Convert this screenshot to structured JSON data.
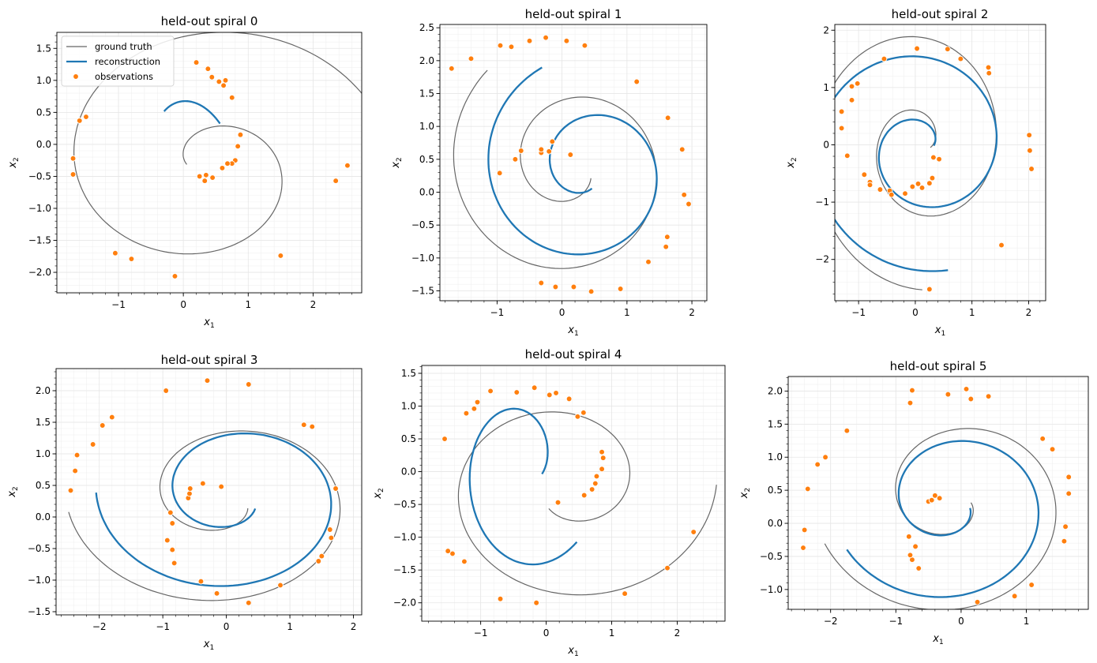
{
  "figure": {
    "background": "#ffffff"
  },
  "legend": {
    "placement": "upper-left of first panel",
    "entries": [
      {
        "label": "ground truth",
        "color": "#666666",
        "kind": "line"
      },
      {
        "label": "reconstruction",
        "color": "#1f77b4",
        "kind": "thick-line"
      },
      {
        "label": "observations",
        "color": "#ff7f0e",
        "kind": "marker"
      }
    ]
  },
  "colors": {
    "truth": "#666666",
    "recon": "#1f77b4",
    "obs": "#ff7f0e",
    "grid": "#e6e6e6"
  },
  "chart_data": [
    {
      "type": "line",
      "title": "held-out spiral 0",
      "xlabel": "x1",
      "ylabel": "x2",
      "xlim": [
        -1.95,
        2.75
      ],
      "ylim": [
        -2.32,
        1.75
      ],
      "xticks": [
        -1,
        0,
        1,
        2
      ],
      "yticks": [
        -2.0,
        -1.5,
        -1.0,
        -0.5,
        0.0,
        0.5,
        1.0,
        1.5
      ],
      "grid": true,
      "legend": true,
      "truth": {
        "x0": 2.55,
        "y0": -0.33,
        "r0": 2.93,
        "r1": 0.3,
        "th0": -6.4,
        "th1": 3.0,
        "cx": 0.35,
        "cy": -0.35,
        "sx": 1.0,
        "sy": 0.85
      },
      "recon": {
        "x0": 0.95,
        "y0": 0.6,
        "r0": 1.0,
        "r1": 0.4,
        "th0": 0.26,
        "th1": 1.2,
        "cx": -0.45,
        "cy": -0.1,
        "sx": 1.05,
        "sy": 1.65
      },
      "observations": [
        [
          2.53,
          -0.33
        ],
        [
          2.35,
          -0.57
        ],
        [
          1.5,
          -1.74
        ],
        [
          -0.13,
          -2.06
        ],
        [
          -0.8,
          -1.79
        ],
        [
          -1.05,
          -1.7
        ],
        [
          -1.7,
          -0.47
        ],
        [
          -1.7,
          -0.22
        ],
        [
          -1.6,
          0.37
        ],
        [
          -1.5,
          0.43
        ],
        [
          0.2,
          1.28
        ],
        [
          0.38,
          1.18
        ],
        [
          0.44,
          1.05
        ],
        [
          0.55,
          0.98
        ],
        [
          0.65,
          1.0
        ],
        [
          0.62,
          0.92
        ],
        [
          0.75,
          0.73
        ],
        [
          0.88,
          0.15
        ],
        [
          0.84,
          -0.03
        ],
        [
          0.8,
          -0.25
        ],
        [
          0.75,
          -0.3
        ],
        [
          0.68,
          -0.3
        ],
        [
          0.6,
          -0.37
        ],
        [
          0.45,
          -0.52
        ],
        [
          0.35,
          -0.48
        ],
        [
          0.33,
          -0.57
        ],
        [
          0.25,
          -0.5
        ]
      ]
    },
    {
      "type": "line",
      "title": "held-out spiral 1",
      "xlabel": "x1",
      "ylabel": "x2",
      "xlim": [
        -1.88,
        2.23
      ],
      "ylim": [
        -1.65,
        2.55
      ],
      "xticks": [
        -1,
        0,
        1,
        2
      ],
      "yticks": [
        -1.5,
        -1.0,
        -0.5,
        0.0,
        0.5,
        1.0,
        1.5,
        2.0,
        2.5
      ],
      "grid": true,
      "legend": false,
      "truth": {
        "x0": -1.72,
        "y0": 1.88,
        "r0": 1.95,
        "r1": 0.35,
        "th0": 2.3,
        "th1": 12.0,
        "cx": 0.15,
        "cy": 0.4,
        "sx": 1.0,
        "sy": 1.0
      },
      "recon": {
        "x0": -0.98,
        "y0": 1.9,
        "r0": 1.7,
        "r1": 0.3,
        "th0": 2.0,
        "th1": 11.2,
        "cx": 0.4,
        "cy": 0.35,
        "sx": 1.0,
        "sy": 1.0
      },
      "observations": [
        [
          -1.7,
          1.88
        ],
        [
          -1.4,
          2.03
        ],
        [
          -0.95,
          2.23
        ],
        [
          -0.78,
          2.21
        ],
        [
          -0.5,
          2.3
        ],
        [
          -0.25,
          2.35
        ],
        [
          0.07,
          2.3
        ],
        [
          0.35,
          2.23
        ],
        [
          1.15,
          1.68
        ],
        [
          1.63,
          1.13
        ],
        [
          1.85,
          0.65
        ],
        [
          1.88,
          -0.04
        ],
        [
          1.95,
          -0.18
        ],
        [
          1.62,
          -0.68
        ],
        [
          1.6,
          -0.83
        ],
        [
          1.33,
          -1.06
        ],
        [
          0.9,
          -1.47
        ],
        [
          0.45,
          -1.51
        ],
        [
          0.18,
          -1.44
        ],
        [
          -0.1,
          -1.44
        ],
        [
          -0.32,
          -1.38
        ],
        [
          -0.96,
          0.29
        ],
        [
          -0.72,
          0.5
        ],
        [
          -0.63,
          0.63
        ],
        [
          -0.32,
          0.6
        ],
        [
          -0.32,
          0.65
        ],
        [
          -0.2,
          0.62
        ],
        [
          -0.15,
          0.77
        ],
        [
          0.13,
          0.57
        ]
      ]
    },
    {
      "type": "line",
      "title": "held-out spiral 2",
      "xlabel": "x1",
      "ylabel": "x2",
      "xlim": [
        -1.42,
        2.3
      ],
      "ylim": [
        -2.72,
        2.1
      ],
      "xticks": [
        -1,
        0,
        1,
        2
      ],
      "yticks": [
        -2,
        -1,
        0,
        1,
        2
      ],
      "grid": true,
      "legend": false,
      "truth": {
        "x0": 0.05,
        "y0": -2.52,
        "r0": 2.53,
        "r1": 0.2,
        "th0": -1.56,
        "th1": -12.8,
        "cx": 0.1,
        "cy": 0.0,
        "sx": 0.85,
        "sy": 1.0
      },
      "recon": {
        "x0": 0.15,
        "y0": -2.33,
        "r0": 2.3,
        "r1": 0.22,
        "th0": -1.36,
        "th1": -12.4,
        "cx": 0.12,
        "cy": -0.05,
        "sx": 0.95,
        "sy": 0.95
      },
      "observations": [
        [
          0.25,
          -2.52
        ],
        [
          1.52,
          -1.75
        ],
        [
          2.05,
          -0.42
        ],
        [
          2.02,
          -0.1
        ],
        [
          2.01,
          0.17
        ],
        [
          1.3,
          1.25
        ],
        [
          1.29,
          1.35
        ],
        [
          0.8,
          1.5
        ],
        [
          0.57,
          1.67
        ],
        [
          0.03,
          1.68
        ],
        [
          -0.55,
          1.5
        ],
        [
          -1.02,
          1.07
        ],
        [
          -1.12,
          1.02
        ],
        [
          -1.12,
          0.78
        ],
        [
          -1.3,
          0.58
        ],
        [
          -1.3,
          0.29
        ],
        [
          -1.2,
          -0.19
        ],
        [
          -0.9,
          -0.52
        ],
        [
          -0.8,
          -0.65
        ],
        [
          -0.8,
          -0.7
        ],
        [
          -0.62,
          -0.78
        ],
        [
          -0.45,
          -0.8
        ],
        [
          -0.42,
          -0.87
        ],
        [
          -0.18,
          -0.85
        ],
        [
          -0.05,
          -0.73
        ],
        [
          0.05,
          -0.68
        ],
        [
          0.12,
          -0.75
        ],
        [
          0.25,
          -0.67
        ],
        [
          0.3,
          -0.58
        ],
        [
          0.32,
          -0.22
        ],
        [
          0.42,
          -0.25
        ]
      ]
    },
    {
      "type": "line",
      "title": "held-out spiral 3",
      "xlabel": "x1",
      "ylabel": "x2",
      "xlim": [
        -2.68,
        2.13
      ],
      "ylim": [
        -1.55,
        2.35
      ],
      "xticks": [
        -2,
        -1,
        0,
        1,
        2
      ],
      "yticks": [
        -1.5,
        -1.0,
        -0.5,
        0.0,
        0.5,
        1.0,
        1.5,
        2.0
      ],
      "grid": true,
      "legend": false,
      "truth": {
        "x0": -2.45,
        "y0": 0.42,
        "r0": 2.5,
        "r1": 0.4,
        "th0": 3.26,
        "th1": 12.0,
        "cx": 0.0,
        "cy": 0.3,
        "sx": 1.0,
        "sy": 0.75
      },
      "recon": {
        "x0": -2.05,
        "y0": 0.5,
        "r0": 2.15,
        "r1": 0.45,
        "th0": 3.12,
        "th1": 11.9,
        "cx": 0.1,
        "cy": 0.35,
        "sx": 1.0,
        "sy": 0.78
      },
      "observations": [
        [
          -2.45,
          0.42
        ],
        [
          -2.38,
          0.73
        ],
        [
          -2.35,
          0.98
        ],
        [
          -2.1,
          1.15
        ],
        [
          -1.95,
          1.45
        ],
        [
          -1.8,
          1.58
        ],
        [
          -0.95,
          2.0
        ],
        [
          -0.3,
          2.16
        ],
        [
          0.35,
          2.1
        ],
        [
          1.22,
          1.46
        ],
        [
          1.35,
          1.43
        ],
        [
          1.72,
          0.45
        ],
        [
          1.63,
          -0.2
        ],
        [
          1.65,
          -0.33
        ],
        [
          1.5,
          -0.62
        ],
        [
          1.45,
          -0.7
        ],
        [
          0.85,
          -1.08
        ],
        [
          0.35,
          -1.36
        ],
        [
          -0.15,
          -1.21
        ],
        [
          -0.4,
          -1.02
        ],
        [
          -0.82,
          -0.73
        ],
        [
          -0.85,
          -0.52
        ],
        [
          -0.93,
          -0.37
        ],
        [
          -0.85,
          -0.1
        ],
        [
          -0.88,
          0.07
        ],
        [
          -0.6,
          0.3
        ],
        [
          -0.58,
          0.37
        ],
        [
          -0.57,
          0.45
        ],
        [
          -0.37,
          0.53
        ],
        [
          -0.08,
          0.48
        ]
      ]
    },
    {
      "type": "line",
      "title": "held-out spiral 4",
      "xlabel": "x1",
      "ylabel": "x2",
      "xlim": [
        -1.9,
        2.73
      ],
      "ylim": [
        -2.28,
        1.62
      ],
      "xticks": [
        -1,
        0,
        1,
        2
      ],
      "yticks": [
        -2.0,
        -1.5,
        -1.0,
        -0.5,
        0.0,
        0.5,
        1.0,
        1.5
      ],
      "grid": true,
      "legend": false,
      "truth": {
        "x0": 2.52,
        "y0": 0.0,
        "r0": 2.3,
        "r1": 0.5,
        "th0": 0.0,
        "th1": -8.4,
        "cx": 0.3,
        "cy": -0.2,
        "sx": 1.0,
        "sy": 0.85
      },
      "recon": {
        "x0": 0.3,
        "y0": -0.4,
        "r0": 1.15,
        "r1": 0.3,
        "th0": -0.78,
        "th1": -6.6,
        "cx": -0.35,
        "cy": 0.1,
        "sx": 1.0,
        "sy": 1.45
      },
      "observations": [
        [
          2.25,
          -0.92
        ],
        [
          1.85,
          -1.47
        ],
        [
          1.2,
          -1.86
        ],
        [
          -0.15,
          -2.0
        ],
        [
          -0.7,
          -1.94
        ],
        [
          -1.25,
          -1.37
        ],
        [
          -1.43,
          -1.25
        ],
        [
          -1.5,
          -1.21
        ],
        [
          -1.55,
          0.5
        ],
        [
          -1.22,
          0.89
        ],
        [
          -1.1,
          0.96
        ],
        [
          -1.05,
          1.06
        ],
        [
          -0.85,
          1.23
        ],
        [
          -0.45,
          1.21
        ],
        [
          -0.18,
          1.28
        ],
        [
          0.05,
          1.17
        ],
        [
          0.15,
          1.2
        ],
        [
          0.35,
          1.11
        ],
        [
          0.48,
          0.84
        ],
        [
          0.57,
          0.9
        ],
        [
          0.85,
          0.3
        ],
        [
          0.87,
          0.21
        ],
        [
          0.85,
          0.04
        ],
        [
          0.77,
          -0.07
        ],
        [
          0.75,
          -0.18
        ],
        [
          0.7,
          -0.27
        ],
        [
          0.58,
          -0.36
        ],
        [
          0.18,
          -0.47
        ]
      ]
    },
    {
      "type": "line",
      "title": "held-out spiral 5",
      "xlabel": "x1",
      "ylabel": "x2",
      "xlim": [
        -2.65,
        1.95
      ],
      "ylim": [
        -1.3,
        2.22
      ],
      "xticks": [
        -2,
        -1,
        0,
        1
      ],
      "yticks": [
        -1.0,
        -0.5,
        0.0,
        0.5,
        1.0,
        1.5,
        2.0
      ],
      "grid": true,
      "legend": false,
      "truth": {
        "x0": -2.35,
        "y0": -0.82,
        "r0": 2.5,
        "r1": 0.3,
        "th0": 3.5,
        "th1": 12.4,
        "cx": -0.1,
        "cy": 0.35,
        "sx": 0.85,
        "sy": 0.75
      },
      "recon": {
        "x0": -2.0,
        "y0": -0.7,
        "r0": 2.1,
        "r1": 0.35,
        "th0": 3.6,
        "th1": 12.3,
        "cx": -0.15,
        "cy": 0.3,
        "sx": 0.85,
        "sy": 0.75
      },
      "observations": [
        [
          -2.42,
          -0.37
        ],
        [
          -2.4,
          -0.1
        ],
        [
          -2.35,
          0.52
        ],
        [
          -2.2,
          0.89
        ],
        [
          -2.08,
          1.0
        ],
        [
          -1.75,
          1.4
        ],
        [
          -0.75,
          2.01
        ],
        [
          -0.78,
          1.82
        ],
        [
          -0.2,
          1.95
        ],
        [
          0.08,
          2.03
        ],
        [
          0.15,
          1.88
        ],
        [
          0.42,
          1.92
        ],
        [
          1.25,
          1.28
        ],
        [
          1.4,
          1.12
        ],
        [
          1.65,
          0.7
        ],
        [
          1.65,
          0.45
        ],
        [
          1.6,
          -0.05
        ],
        [
          1.58,
          -0.27
        ],
        [
          1.08,
          -0.93
        ],
        [
          0.82,
          -1.1
        ],
        [
          0.25,
          -1.19
        ],
        [
          -0.65,
          -0.68
        ],
        [
          -0.75,
          -0.55
        ],
        [
          -0.78,
          -0.48
        ],
        [
          -0.8,
          -0.2
        ],
        [
          -0.7,
          -0.35
        ],
        [
          -0.5,
          0.33
        ],
        [
          -0.45,
          0.35
        ],
        [
          -0.4,
          0.42
        ],
        [
          -0.33,
          0.38
        ]
      ]
    }
  ]
}
